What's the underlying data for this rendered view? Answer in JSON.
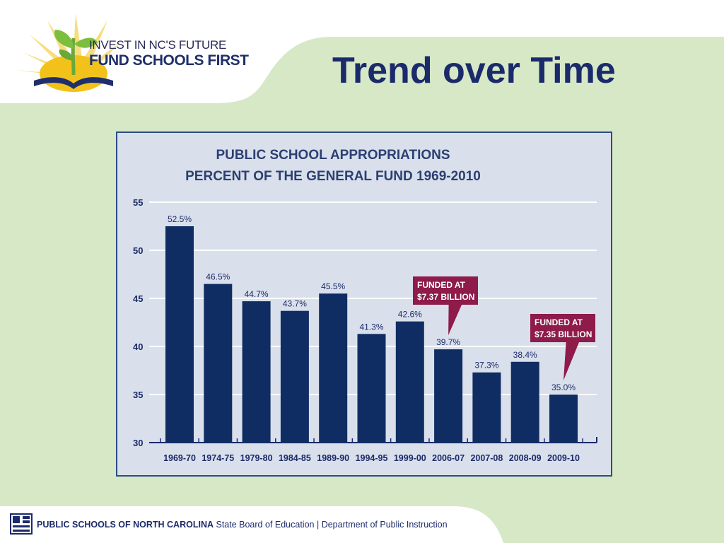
{
  "logo": {
    "line1": "INVEST IN NC'S FUTURE",
    "line2": "FUND SCHOOLS FIRST"
  },
  "slide_title": "Trend over Time",
  "footer": {
    "org": "PUBLIC SCHOOLS OF NORTH CAROLINA",
    "board": "State Board of Education",
    "separator": "|",
    "dept": "Department of Public Instruction"
  },
  "colors": {
    "bar": "#0f2d63",
    "callout": "#8e1b4a",
    "title_text": "#1b2a6b",
    "background": "#d6e8c6",
    "chart_bg": "#d9e0eb"
  },
  "chart_data": {
    "type": "bar",
    "title_line1": "PUBLIC SCHOOL APPROPRIATIONS",
    "title_line2": "PERCENT OF THE GENERAL FUND 1969-2010",
    "xlabel": "",
    "ylabel": "",
    "categories": [
      "1969-70",
      "1974-75",
      "1979-80",
      "1984-85",
      "1989-90",
      "1994-95",
      "1999-00",
      "2006-07",
      "2007-08",
      "2008-09",
      "2009-10"
    ],
    "values": [
      52.5,
      46.5,
      44.7,
      43.7,
      45.5,
      41.3,
      42.6,
      39.7,
      37.3,
      38.4,
      35.0
    ],
    "data_labels": [
      "52.5%",
      "46.5%",
      "44.7%",
      "43.7%",
      "45.5%",
      "41.3%",
      "42.6%",
      "39.7%",
      "37.3%",
      "38.4%",
      "35.0%"
    ],
    "ylim": [
      30,
      55
    ],
    "yticks": [
      55,
      50,
      45,
      40,
      35,
      30
    ],
    "grid": true,
    "annotations": [
      {
        "target_category": "2006-07",
        "line1": "FUNDED AT",
        "line2": "$7.37 BILLION"
      },
      {
        "target_category": "2009-10",
        "line1": "FUNDED AT",
        "line2": "$7.35 BILLION"
      }
    ]
  }
}
